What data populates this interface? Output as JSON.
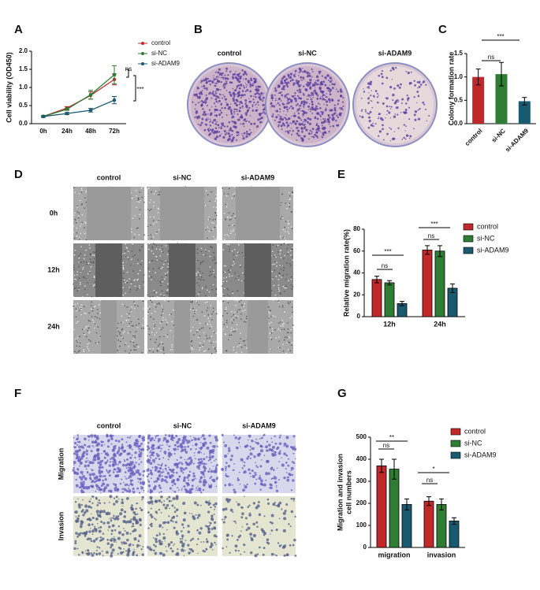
{
  "panels": [
    "A",
    "B",
    "C",
    "D",
    "E",
    "F",
    "G"
  ],
  "images": {
    "colony": {
      "columns": [
        "control",
        "si-NC",
        "si-ADAM9"
      ]
    },
    "wound": {
      "columns": [
        "control",
        "si-NC",
        "si-ADAM9"
      ],
      "rows": [
        "0h",
        "12h",
        "24h"
      ]
    },
    "transwell": {
      "columns": [
        "control",
        "si-NC",
        "si-ADAM9"
      ],
      "rows": [
        "Migration",
        "Invasion"
      ]
    }
  },
  "chart_data": [
    {
      "type": "line",
      "ylabel": "Cell viability (OD450)",
      "categories": [
        "0h",
        "24h",
        "48h",
        "72h"
      ],
      "ylim": [
        0,
        2
      ],
      "yticks": [
        {
          "value": 0,
          "label": "0.0"
        },
        0.5,
        {
          "value": 1,
          "label": "1.0"
        },
        1.5,
        {
          "value": 2,
          "label": "2.0"
        }
      ],
      "series": [
        {
          "name": "control",
          "color": "#c0282a",
          "values": [
            0.2,
            0.43,
            0.78,
            1.22
          ],
          "errors": [
            0.02,
            0.04,
            0.1,
            0.15
          ]
        },
        {
          "name": "si-NC",
          "color": "#2e7d32",
          "values": [
            0.2,
            0.4,
            0.8,
            1.35
          ],
          "errors": [
            0.02,
            0.03,
            0.12,
            0.25
          ]
        },
        {
          "name": "si-ADAM9",
          "color": "#1a5a70",
          "values": [
            0.2,
            0.28,
            0.37,
            0.65
          ],
          "errors": [
            0.02,
            0.03,
            0.05,
            0.1
          ]
        }
      ],
      "annotations": [
        "ns",
        "***"
      ]
    },
    {
      "type": "bar",
      "ylabel": "Colony formation rate",
      "categories": [
        "control",
        "si-NC",
        "si-ADAM9"
      ],
      "values": [
        1.0,
        1.06,
        0.48
      ],
      "errors": [
        0.17,
        0.25,
        0.08
      ],
      "colors": [
        "#c0282a",
        "#2e7d32",
        "#1a5a70"
      ],
      "ylim": [
        0,
        1.5
      ],
      "yticks": [
        {
          "value": 0,
          "label": "0.0"
        },
        0.5,
        {
          "value": 1,
          "label": "1.0"
        },
        1.5
      ],
      "annotations": [
        "ns",
        "***"
      ]
    },
    {
      "type": "bar",
      "ylabel": "Relative migration rate(%)",
      "categories": [
        "12h",
        "24h"
      ],
      "ylim": [
        0,
        80
      ],
      "yticks": [
        0,
        20,
        40,
        60,
        80
      ],
      "series": [
        {
          "name": "control",
          "color": "#c0282a",
          "values": [
            34,
            61
          ],
          "errors": [
            3,
            4
          ]
        },
        {
          "name": "si-NC",
          "color": "#2e7d32",
          "values": [
            31,
            60
          ],
          "errors": [
            2,
            5
          ]
        },
        {
          "name": "si-ADAM9",
          "color": "#1a5a70",
          "values": [
            12,
            26
          ],
          "errors": [
            2,
            4
          ]
        }
      ],
      "annotations": [
        "ns",
        "***",
        "ns",
        "***"
      ]
    },
    {
      "type": "bar",
      "ylabel": [
        "Migration and invasion",
        "cell numbers"
      ],
      "categories": [
        "migration",
        "invasion"
      ],
      "ylim": [
        0,
        500
      ],
      "yticks": [
        0,
        100,
        200,
        300,
        400,
        500
      ],
      "series": [
        {
          "name": "control",
          "color": "#c0282a",
          "values": [
            370,
            210
          ],
          "errors": [
            30,
            20
          ]
        },
        {
          "name": "si-NC",
          "color": "#2e7d32",
          "values": [
            355,
            195
          ],
          "errors": [
            45,
            25
          ]
        },
        {
          "name": "si-ADAM9",
          "color": "#1a5a70",
          "values": [
            195,
            120
          ],
          "errors": [
            25,
            15
          ]
        }
      ],
      "annotations": [
        "ns",
        "**",
        "ns",
        "*"
      ]
    }
  ]
}
